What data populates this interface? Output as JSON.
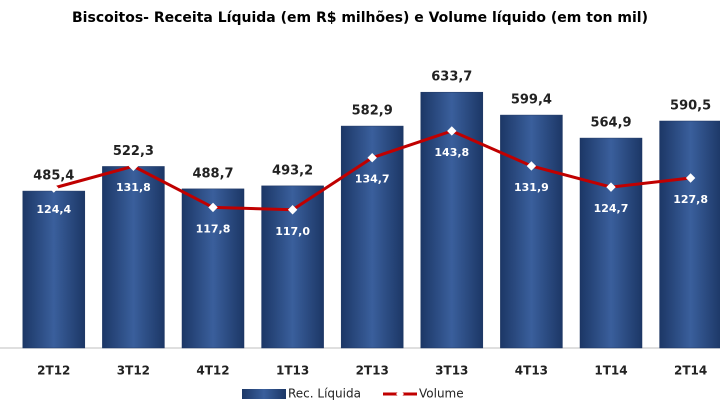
{
  "chart_data": {
    "type": "bar",
    "title": "Biscoitos- Receita Líquida  (em R$ milhões) e Volume líquido (em ton mil)",
    "categories": [
      "2T12",
      "3T12",
      "4T12",
      "1T13",
      "2T13",
      "3T13",
      "4T13",
      "1T14",
      "2T14"
    ],
    "series": [
      {
        "name": "Rec. Líquida",
        "type": "bar",
        "color": "#2b4c86",
        "values": [
          485.4,
          522.3,
          488.7,
          493.2,
          582.9,
          633.7,
          599.4,
          564.9,
          590.5
        ],
        "value_labels": [
          "485,4",
          "522,3",
          "488,7",
          "493,2",
          "582,9",
          "633,7",
          "599,4",
          "564,9",
          "590,5"
        ]
      },
      {
        "name": "Volume",
        "type": "line",
        "axis": "y2",
        "color": "#c00000",
        "values": [
          124.4,
          131.8,
          117.8,
          117.0,
          134.7,
          143.8,
          131.9,
          124.7,
          127.8
        ],
        "value_labels": [
          "124,4",
          "131,8",
          "117,8",
          "117,0",
          "134,7",
          "143,8",
          "131,9",
          "124,7",
          "127,8"
        ]
      }
    ],
    "ylim": [
      250,
      700
    ],
    "y2lim": [
      70,
      172
    ],
    "legend": "bottom"
  }
}
